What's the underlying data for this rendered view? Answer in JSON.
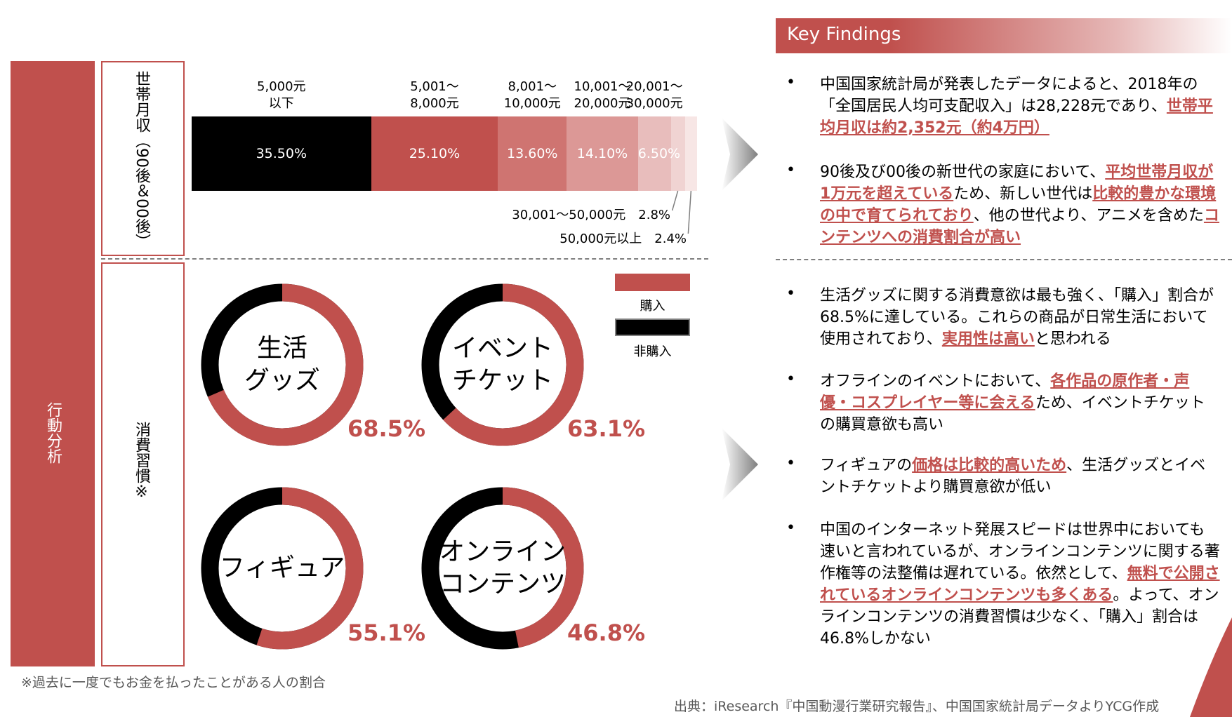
{
  "side_label": "行動分析",
  "row_labels": [
    "世帯月収（90後＆00後）",
    "消費習慣※"
  ],
  "chart_data": [
    {
      "type": "bar",
      "orientation": "horizontal-stacked",
      "categories": [
        "5,000元\n以下",
        "5,001～\n8,000元",
        "8,001～\n10,000元",
        "10,001～\n20,000元",
        "20,001～\n30,000元",
        "30,001～50,000元",
        "50,000元以上"
      ],
      "values": [
        35.5,
        25.1,
        13.6,
        14.1,
        6.5,
        2.8,
        2.4
      ],
      "value_labels": [
        "35.50%",
        "25.10%",
        "13.60%",
        "14.10%",
        "6.50%",
        "2.8%",
        "2.4%"
      ],
      "colors": [
        "#000000",
        "#c0504d",
        "#cf7471",
        "#dc9896",
        "#e8bdbc",
        "#f0d3d2",
        "#f7e6e5"
      ]
    },
    {
      "type": "pie",
      "style": "donut",
      "legend": [
        "購入",
        "非購入"
      ],
      "legend_colors": [
        "#c0504d",
        "#000000"
      ],
      "items": [
        {
          "label_lines": [
            "生活",
            "グッズ"
          ],
          "value": 68.5,
          "value_label": "68.5%"
        },
        {
          "label_lines": [
            "イベント",
            "チケット"
          ],
          "value": 63.1,
          "value_label": "63.1%"
        },
        {
          "label_lines": [
            "フィギュア"
          ],
          "value": 55.1,
          "value_label": "55.1%"
        },
        {
          "label_lines": [
            "オンライン",
            "コンテンツ"
          ],
          "value": 46.8,
          "value_label": "46.8%"
        }
      ]
    }
  ],
  "key_findings": {
    "title": "Key Findings",
    "bullet": "•",
    "items": [
      [
        {
          "t": "中国国家統計局が発表したデータによると、2018年の「全国居民人均可支配収入」は28,228元であり、"
        },
        {
          "t": "世帯平均月収は約2,352元（約4万円）",
          "hl": true
        }
      ],
      [
        {
          "t": "90後及び00後の新世代の家庭において、"
        },
        {
          "t": "平均世帯月収が1万元を超えている",
          "hl": true
        },
        {
          "t": "ため、新しい世代は"
        },
        {
          "t": "比較的豊かな環境の中で育てられており",
          "hl": true
        },
        {
          "t": "、他の世代より、アニメを含めた"
        },
        {
          "t": "コンテンツへの消費割合が高い",
          "hl": true
        }
      ],
      [
        {
          "t": "生活グッズに関する消費意欲は最も強く、「購入」割合が68.5%に達している。これらの商品が日常生活において使用されており、"
        },
        {
          "t": "実用性は高い",
          "hl": true
        },
        {
          "t": "と思われる"
        }
      ],
      [
        {
          "t": "オフラインのイベントにおいて、"
        },
        {
          "t": "各作品の原作者・声優・コスプレイヤー等に会える",
          "hl": true
        },
        {
          "t": "ため、イベントチケットの購買意欲も高い"
        }
      ],
      [
        {
          "t": "フィギュアの"
        },
        {
          "t": "価格は比較的高いため",
          "hl": true
        },
        {
          "t": "、生活グッズとイベントチケットより購買意欲が低い"
        }
      ],
      [
        {
          "t": "中国のインターネット発展スピードは世界中においても速いと言われているが、オンラインコンテンツに関する著作権等の法整備は遅れている。依然として、"
        },
        {
          "t": "無料で公開されているオンラインコンテンツも多くある",
          "hl": true
        },
        {
          "t": "。よって、オンラインコンテンツの消費習慣は少なく、「購入」割合は46.8%しかない"
        }
      ]
    ]
  },
  "footnote": "※過去に一度でもお金を払ったことがある人の割合",
  "source": "出典：iResearch『中国動漫行業研究報告』、中国国家統計局データよりYCG作成"
}
